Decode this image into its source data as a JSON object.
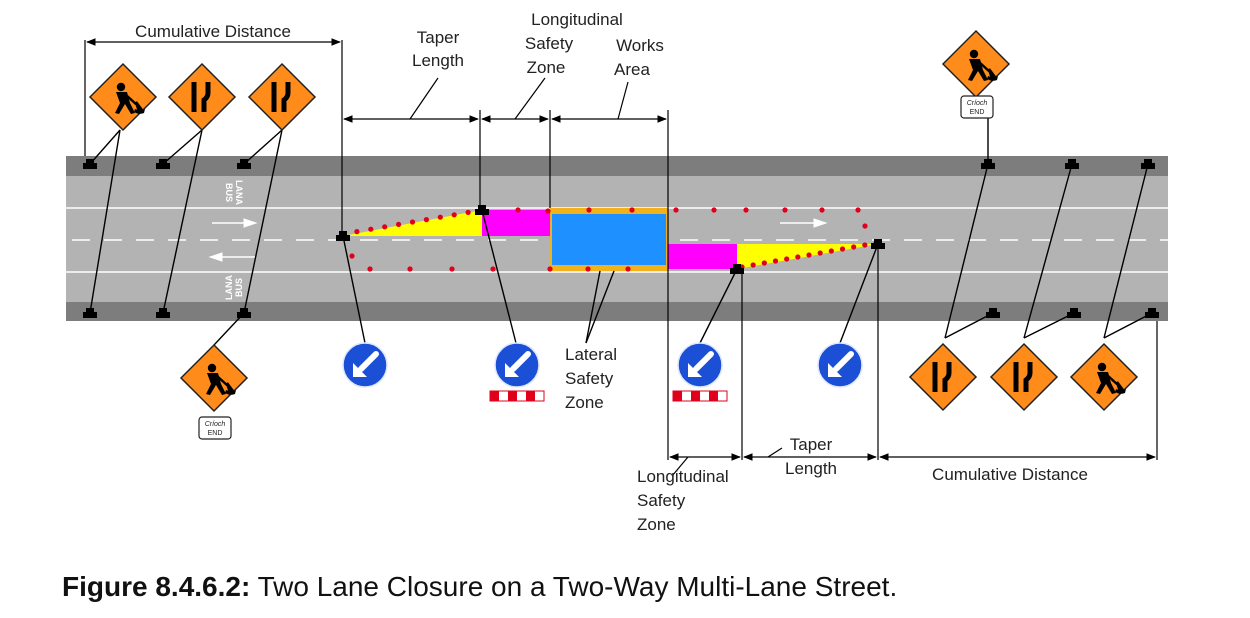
{
  "labels": {
    "cumulative_distance_left": "Cumulative Distance",
    "cumulative_distance_right": "Cumulative Distance",
    "taper_length_top": [
      "Taper",
      "Length"
    ],
    "taper_length_bottom": [
      "Taper",
      "Length"
    ],
    "longitudinal_safety_zone_top": [
      "Longitudinal",
      "Safety",
      "Zone"
    ],
    "longitudinal_safety_zone_bottom": [
      "Longitudinal",
      "Safety",
      "Zone"
    ],
    "works_area": [
      "Works",
      "Area"
    ],
    "lateral_safety_zone": [
      "Lateral",
      "Safety",
      "Zone"
    ]
  },
  "road_markings": {
    "bus_lane_upper": [
      "LANA",
      "BUS"
    ],
    "bus_lane_lower": [
      "LANA",
      "BUS"
    ]
  },
  "end_signs": {
    "line1": "Críoch",
    "line2": "END"
  },
  "caption": {
    "figure_number": "Figure 8.4.6.2:",
    "title": "Two Lane Closure on a Two-Way Multi-Lane Street."
  },
  "colors": {
    "road": "#b3b3b3",
    "road_edge": "#7d7d7d",
    "sign_orange": "#ff8c1a",
    "keep_left_blue": "#1a4fd6",
    "works_area": "#1e90ff",
    "lateral_zone_border": "#f3b21b",
    "taper": "#ffff00",
    "longitudinal_zone": "#ff00ff",
    "cone": "#e0001b"
  },
  "icons": {
    "roadworks_sign": "roadworks-icon",
    "road_narrows_sign": "road-narrows-icon",
    "keep_left_sign": "keep-left-icon",
    "end_plate": "end-plate"
  }
}
